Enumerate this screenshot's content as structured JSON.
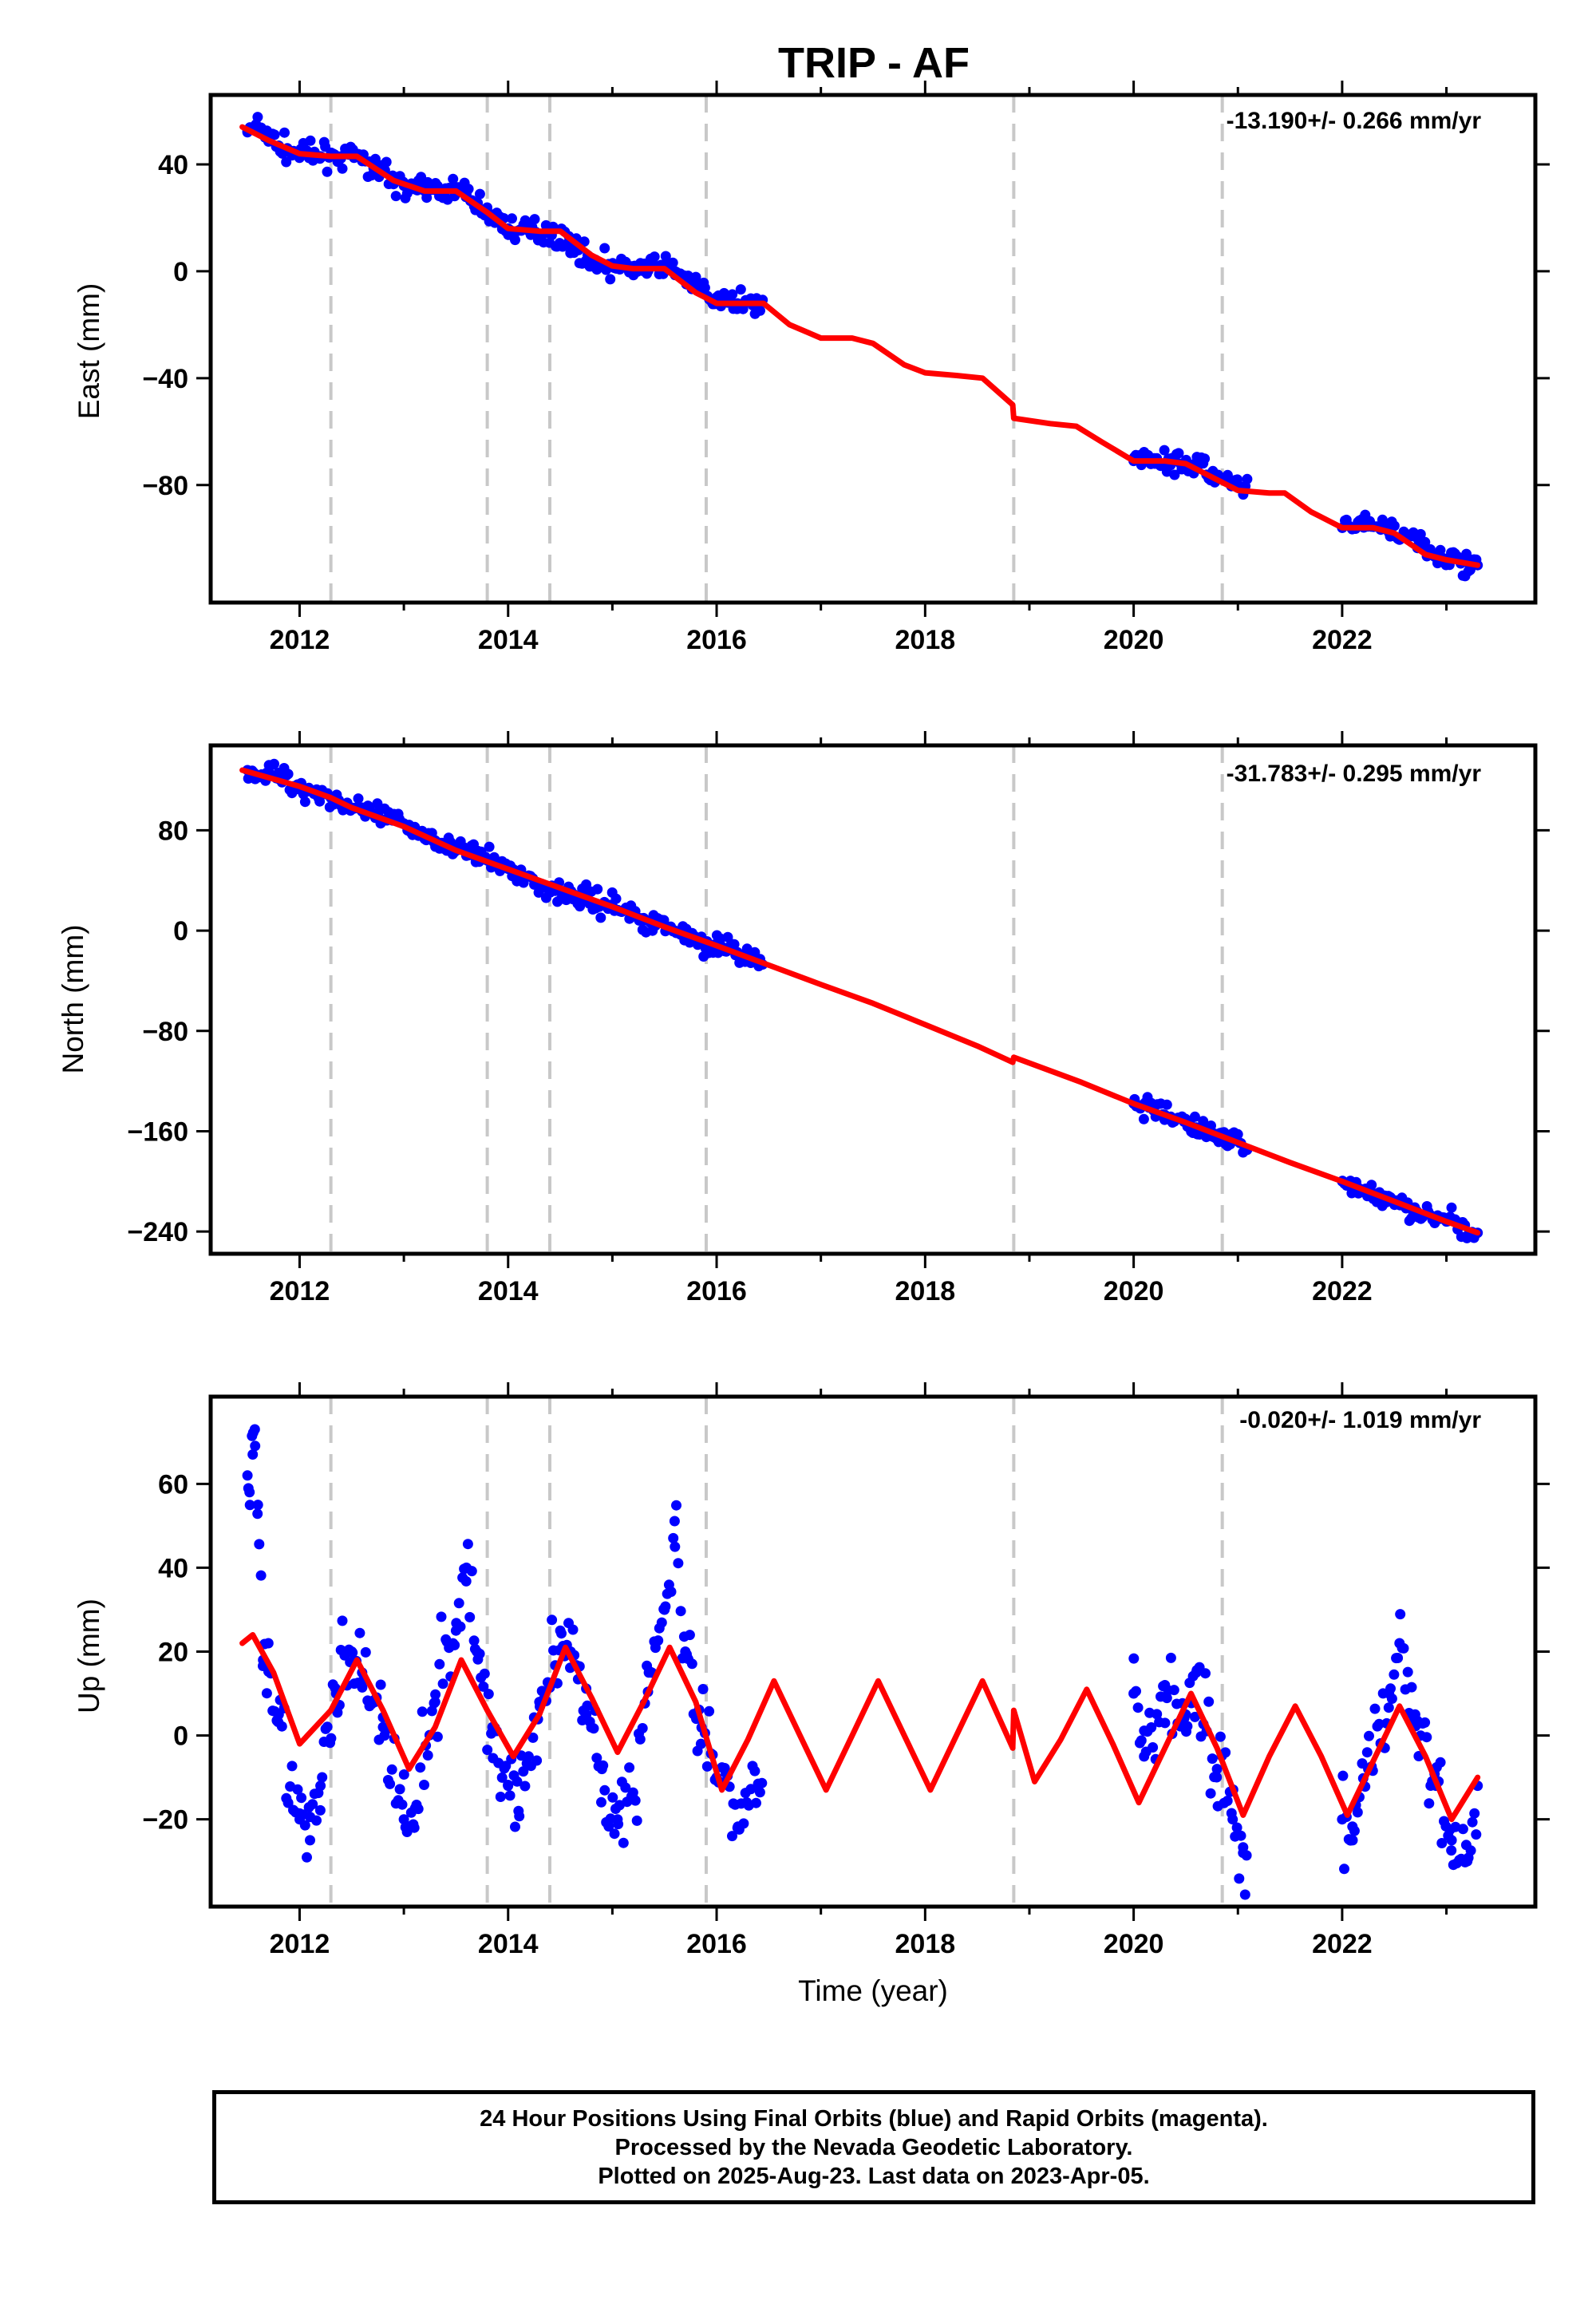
{
  "chart_data": {
    "title": "TRIP - AF",
    "type": "scatter",
    "xlabel": "Time (year)",
    "xlim": [
      2011.3,
      2023.7
    ],
    "xticks": [
      2012,
      2014,
      2016,
      2018,
      2020,
      2022
    ],
    "xtick_labels": [
      "2012",
      "2014",
      "2016",
      "2018",
      "2020",
      "2022"
    ],
    "grid": false,
    "vertical_dashed_lines": [
      2012.3,
      2013.8,
      2014.4,
      2015.9,
      2018.85,
      2020.85
    ],
    "colors": {
      "points": "#0000ff",
      "model": "#ff0000",
      "dashes": "#c8c8c8"
    },
    "panels": [
      {
        "name": "East",
        "ylabel": "East (mm)",
        "ylim": [
          -118,
          60
        ],
        "yticks": [
          40,
          0,
          -40,
          -80
        ],
        "ytick_labels": [
          "40",
          "0",
          "−40",
          "−80"
        ],
        "rate_label": "-13.190+/- 0.266 mm/yr",
        "data_segments": [
          [
            2011.5,
            2016.45
          ],
          [
            2020.0,
            2021.1
          ],
          [
            2022.0,
            2023.3
          ]
        ],
        "series": [
          {
            "name": "model",
            "kind": "line",
            "x": [
              2011.45,
              2011.7,
              2012.0,
              2012.3,
              2012.55,
              2012.9,
              2013.2,
              2013.5,
              2013.8,
              2014.0,
              2014.3,
              2014.5,
              2014.8,
              2015.0,
              2015.2,
              2015.5,
              2015.8,
              2016.0,
              2016.2,
              2016.45,
              2016.7,
              2017.0,
              2017.3,
              2017.5,
              2017.8,
              2018.0,
              2018.3,
              2018.55,
              2018.84,
              2018.85,
              2019.2,
              2019.45,
              2019.7,
              2020.0,
              2020.3,
              2020.5,
              2020.8,
              2021.0,
              2021.3,
              2021.45,
              2021.7,
              2022.0,
              2022.3,
              2022.5,
              2022.8,
              2023.0,
              2023.3
            ],
            "y": [
              54,
              49,
              44,
              43,
              43,
              34,
              30,
              30,
              22,
              16,
              15,
              15,
              6,
              2,
              1,
              1,
              -8,
              -12,
              -12,
              -12,
              -20,
              -25,
              -25,
              -27,
              -35,
              -38,
              -39,
              -40,
              -50,
              -55,
              -57,
              -58,
              -64,
              -71,
              -71,
              -72,
              -78,
              -82,
              -83,
              -83,
              -90,
              -96,
              -96,
              -98,
              -106,
              -108,
              -110
            ]
          },
          {
            "name": "daily positions",
            "kind": "scatter",
            "x": [
              2011.5,
              2011.6,
              2011.8,
              2012.0,
              2012.2,
              2012.4,
              2012.6,
              2012.8,
              2013.0,
              2013.2,
              2013.4,
              2013.6,
              2013.8,
              2014.0,
              2014.2,
              2014.4,
              2014.6,
              2014.8,
              2015.0,
              2015.2,
              2015.4,
              2015.6,
              2015.8,
              2016.0,
              2016.2,
              2016.4,
              2020.0,
              2020.2,
              2020.4,
              2020.6,
              2020.8,
              2021.0,
              2022.0,
              2022.2,
              2022.4,
              2022.6,
              2022.8,
              2023.0,
              2023.2,
              2023.3
            ],
            "y": [
              52,
              54,
              47,
              44,
              43,
              43,
              42,
              37,
              32,
              30,
              31,
              29,
              22,
              16,
              15,
              15,
              10,
              4,
              2,
              1,
              2,
              0,
              -6,
              -11,
              -12,
              -11,
              -71,
              -70,
              -71,
              -72,
              -77,
              -81,
              -96,
              -95,
              -96,
              -99,
              -104,
              -108,
              -109,
              -110
            ]
          }
        ]
      },
      {
        "name": "North",
        "ylabel": "North (mm)",
        "ylim": [
          -245,
          135
        ],
        "yticks": [
          80,
          0,
          -80,
          -160,
          -240
        ],
        "ytick_labels": [
          "80",
          "0",
          "−80",
          "−160",
          "−240"
        ],
        "rate_label": "-31.783+/- 0.295 mm/yr",
        "data_segments": [
          [
            2011.5,
            2016.45
          ],
          [
            2020.0,
            2021.1
          ],
          [
            2022.0,
            2023.3
          ]
        ],
        "series": [
          {
            "name": "model",
            "kind": "line",
            "x": [
              2011.45,
              2012.0,
              2012.3,
              2012.5,
              2013.0,
              2013.5,
              2014.0,
              2014.5,
              2015.0,
              2015.5,
              2016.0,
              2016.45,
              2017.0,
              2017.5,
              2018.0,
              2018.5,
              2018.84,
              2018.85,
              2019.5,
              2020.0,
              2020.5,
              2021.0,
              2021.5,
              2022.0,
              2022.5,
              2023.0,
              2023.3
            ],
            "y": [
              128,
              115,
              106,
              98,
              83,
              64,
              49,
              34,
              19,
              3,
              -12,
              -26,
              -43,
              -58,
              -75,
              -92,
              -105,
              -101,
              -121,
              -138,
              -153,
              -169,
              -185,
              -200,
              -216,
              -232,
              -241
            ]
          },
          {
            "name": "daily positions",
            "kind": "scatter",
            "x": [
              2011.5,
              2011.8,
              2012.0,
              2012.3,
              2012.6,
              2013.0,
              2013.3,
              2013.6,
              2014.0,
              2014.3,
              2014.6,
              2015.0,
              2015.3,
              2015.6,
              2016.0,
              2016.4,
              2020.0,
              2020.3,
              2020.6,
              2021.0,
              2022.0,
              2022.3,
              2022.6,
              2023.0,
              2023.3
            ],
            "y": [
              128,
              124,
              116,
              106,
              95,
              85,
              72,
              63,
              50,
              37,
              28,
              20,
              10,
              0,
              -12,
              -24,
              -138,
              -147,
              -157,
              -168,
              -200,
              -210,
              -220,
              -232,
              -241
            ]
          }
        ]
      },
      {
        "name": "Up",
        "ylabel": "Up (mm)",
        "ylim": [
          -37,
          77
        ],
        "yticks": [
          60,
          40,
          20,
          0,
          -20
        ],
        "ytick_labels": [
          "60",
          "40",
          "20",
          "0",
          "−20"
        ],
        "rate_label": "-0.020+/- 1.019 mm/yr",
        "data_segments": [
          [
            2011.5,
            2016.45
          ],
          [
            2020.0,
            2021.1
          ],
          [
            2022.0,
            2023.3
          ]
        ],
        "series": [
          {
            "name": "model",
            "kind": "line",
            "x": [
              2011.45,
              2011.55,
              2011.75,
              2012.0,
              2012.3,
              2012.55,
              2012.8,
              2013.05,
              2013.3,
              2013.55,
              2013.8,
              2014.05,
              2014.3,
              2014.55,
              2014.8,
              2015.05,
              2015.3,
              2015.55,
              2015.8,
              2016.05,
              2016.3,
              2016.55,
              2016.8,
              2017.05,
              2017.3,
              2017.55,
              2017.8,
              2018.05,
              2018.3,
              2018.55,
              2018.84,
              2018.85,
              2019.05,
              2019.3,
              2019.55,
              2019.8,
              2020.05,
              2020.3,
              2020.55,
              2020.8,
              2021.05,
              2021.3,
              2021.55,
              2021.8,
              2022.05,
              2022.3,
              2022.55,
              2022.8,
              2023.05,
              2023.3
            ],
            "y": [
              22,
              24,
              15,
              -2,
              6,
              18,
              6,
              -8,
              2,
              18,
              6,
              -5,
              5,
              21,
              9,
              -4,
              8,
              21,
              8,
              -13,
              -1,
              13,
              0,
              -13,
              0,
              13,
              0,
              -13,
              0,
              13,
              -3,
              6,
              -11,
              -1,
              11,
              -2,
              -16,
              -3,
              10,
              -3,
              -19,
              -5,
              7,
              -5,
              -19,
              -6,
              7,
              -5,
              -20,
              -10
            ]
          },
          {
            "name": "daily positions",
            "kind": "scatter",
            "x": [
              2011.5,
              2011.52,
              2011.55,
              2011.57,
              2011.6,
              2011.65,
              2011.7,
              2011.8,
              2012.0,
              2012.1,
              2012.2,
              2012.35,
              2012.5,
              2012.6,
              2012.8,
              2013.0,
              2013.1,
              2013.3,
              2013.5,
              2013.6,
              2013.7,
              2013.85,
              2014.0,
              2014.1,
              2014.3,
              2014.5,
              2014.6,
              2014.75,
              2014.9,
              2015.05,
              2015.2,
              2015.35,
              2015.5,
              2015.6,
              2015.7,
              2015.85,
              2016.0,
              2016.2,
              2016.4,
              2020.0,
              2020.1,
              2020.3,
              2020.5,
              2020.6,
              2020.8,
              2020.95,
              2021.05,
              2022.0,
              2022.1,
              2022.25,
              2022.45,
              2022.55,
              2022.7,
              2022.9,
              2023.05,
              2023.2,
              2023.3
            ],
            "y": [
              62,
              58,
              67,
              73,
              55,
              18,
              22,
              5,
              -20,
              -25,
              -12,
              10,
              20,
              15,
              2,
              -20,
              -22,
              8,
              25,
              40,
              20,
              2,
              -12,
              -18,
              8,
              25,
              20,
              5,
              -8,
              -20,
              -15,
              15,
              30,
              45,
              20,
              -2,
              -10,
              -22,
              -12,
              10,
              -5,
              12,
              5,
              15,
              -8,
              -20,
              -28,
              -20,
              -25,
              -8,
              10,
              22,
              5,
              -12,
              -25,
              -30,
              -12
            ]
          }
        ]
      }
    ]
  },
  "footer": {
    "line1": "24 Hour Positions Using Final Orbits (blue) and Rapid Orbits (magenta).",
    "line2": "Processed by the Nevada Geodetic Laboratory.",
    "line3": "Plotted on 2025-Aug-23. Last data on 2023-Apr-05."
  }
}
